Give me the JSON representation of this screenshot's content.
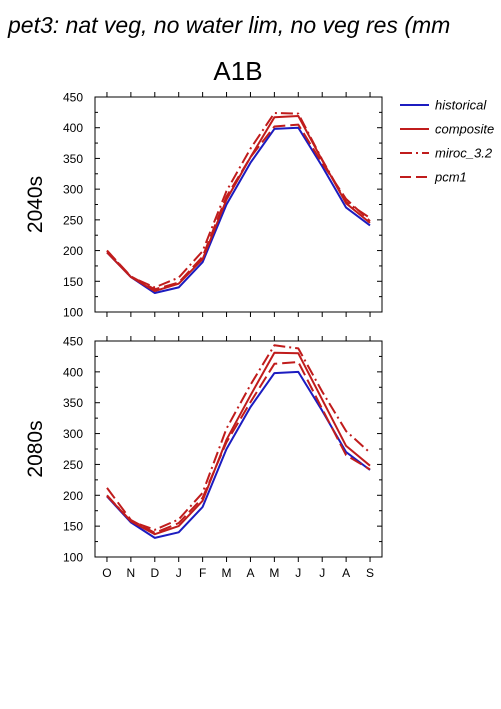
{
  "figure": {
    "title": "pet3: nat veg, no water lim, no veg res (mm",
    "scenario": "A1B"
  },
  "legend": {
    "items": [
      {
        "label": "historical",
        "color": "#1c1cc0",
        "dash": "solid"
      },
      {
        "label": "composite",
        "color": "#c01c1c",
        "dash": "solid"
      },
      {
        "label": "miroc_3.2",
        "color": "#c01c1c",
        "dash": "dashdot"
      },
      {
        "label": "pcm1",
        "color": "#c01c1c",
        "dash": "dash"
      }
    ]
  },
  "chart_data": [
    {
      "type": "line",
      "panel_label": "2040s",
      "title": "A1B",
      "xlabel": "",
      "ylabel": "2040s",
      "categories": [
        "O",
        "N",
        "D",
        "J",
        "F",
        "M",
        "A",
        "M",
        "J",
        "J",
        "A",
        "S"
      ],
      "ylim": [
        100,
        450
      ],
      "yticks": [
        100,
        150,
        200,
        250,
        300,
        350,
        400,
        450
      ],
      "series": [
        {
          "name": "historical",
          "color": "#1c1cc0",
          "dash": "solid",
          "values": [
            197,
            157,
            131,
            140,
            181,
            275,
            343,
            398,
            400,
            337,
            270,
            241
          ]
        },
        {
          "name": "composite",
          "color": "#c01c1c",
          "dash": "solid",
          "values": [
            197,
            157,
            134,
            146,
            186,
            283,
            352,
            417,
            419,
            347,
            277,
            245
          ]
        },
        {
          "name": "miroc_3.2",
          "color": "#c01c1c",
          "dash": "dashdot",
          "values": [
            200,
            157,
            140,
            156,
            199,
            297,
            366,
            424,
            423,
            348,
            279,
            253
          ]
        },
        {
          "name": "pcm1",
          "color": "#c01c1c",
          "dash": "dash",
          "values": [
            200,
            158,
            137,
            148,
            190,
            288,
            352,
            402,
            405,
            342,
            284,
            248
          ]
        }
      ]
    },
    {
      "type": "line",
      "panel_label": "2080s",
      "xlabel": "",
      "ylabel": "2080s",
      "categories": [
        "O",
        "N",
        "D",
        "J",
        "F",
        "M",
        "A",
        "M",
        "J",
        "J",
        "A",
        "S"
      ],
      "ylim": [
        100,
        450
      ],
      "yticks": [
        100,
        150,
        200,
        250,
        300,
        350,
        400,
        450
      ],
      "series": [
        {
          "name": "historical",
          "color": "#1c1cc0",
          "dash": "solid",
          "values": [
            198,
            156,
            131,
            140,
            181,
            275,
            343,
            398,
            400,
            337,
            270,
            241
          ]
        },
        {
          "name": "composite",
          "color": "#c01c1c",
          "dash": "solid",
          "values": [
            199,
            158,
            137,
            150,
            191,
            290,
            362,
            431,
            430,
            355,
            280,
            248
          ]
        },
        {
          "name": "miroc_3.2",
          "color": "#c01c1c",
          "dash": "dashdot",
          "values": [
            200,
            158,
            144,
            161,
            204,
            308,
            379,
            443,
            438,
            368,
            304,
            269
          ]
        },
        {
          "name": "pcm1",
          "color": "#c01c1c",
          "dash": "dash",
          "values": [
            212,
            160,
            139,
            155,
            196,
            286,
            351,
            413,
            416,
            340,
            265,
            242
          ]
        }
      ]
    }
  ]
}
